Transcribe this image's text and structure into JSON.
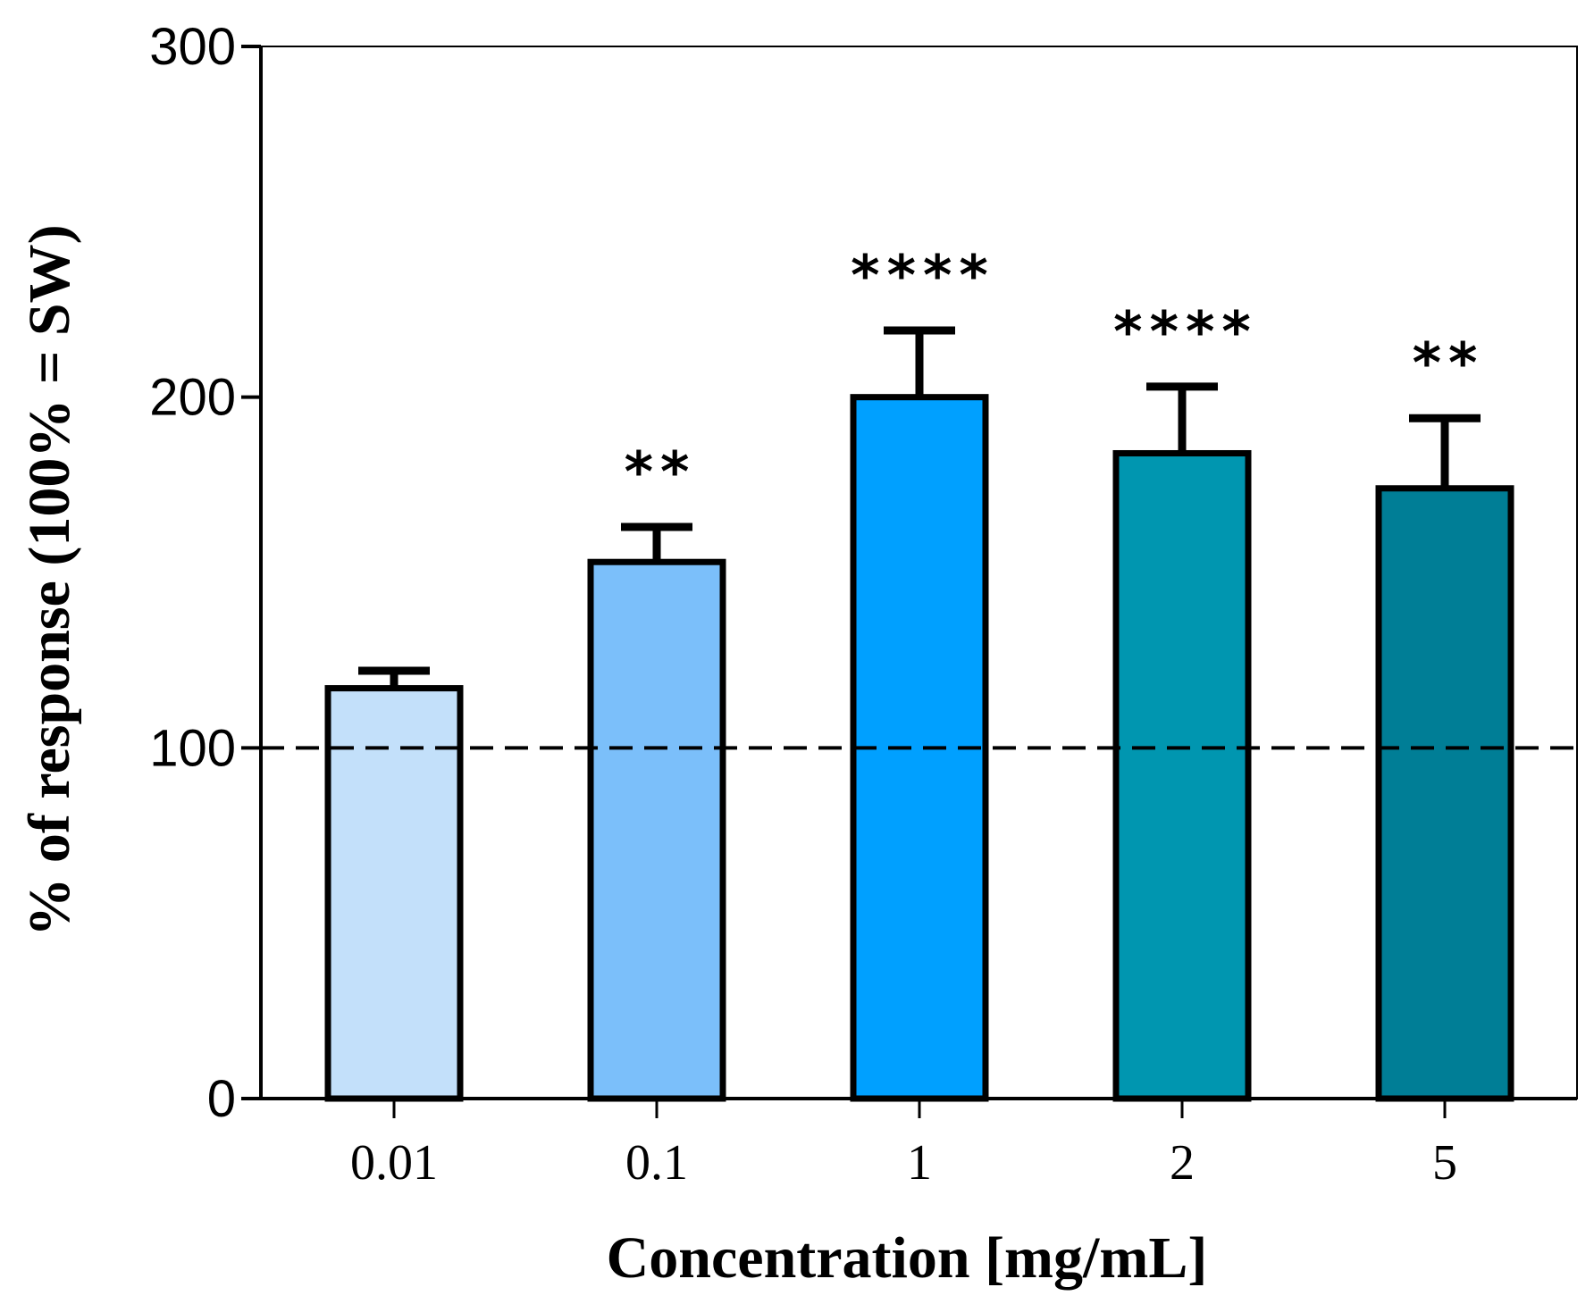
{
  "chart_data": {
    "type": "bar",
    "categories": [
      "0.01",
      "0.1",
      "1",
      "2",
      "5"
    ],
    "values": [
      117,
      153,
      200,
      184,
      174
    ],
    "errors": [
      5,
      10,
      19,
      19,
      20
    ],
    "significance": [
      "",
      "**",
      "****",
      "****",
      "**"
    ],
    "colors": [
      "#c3e0fa",
      "#7bbffa",
      "#00a0ff",
      "#0096b0",
      "#007e96"
    ],
    "reference_line": 100,
    "xlabel": "Concentration [mg/mL]",
    "ylabel": "% of response (100% = SW)",
    "ylim": [
      0,
      300
    ],
    "yticks": [
      0,
      100,
      200,
      300
    ],
    "grid": false
  }
}
